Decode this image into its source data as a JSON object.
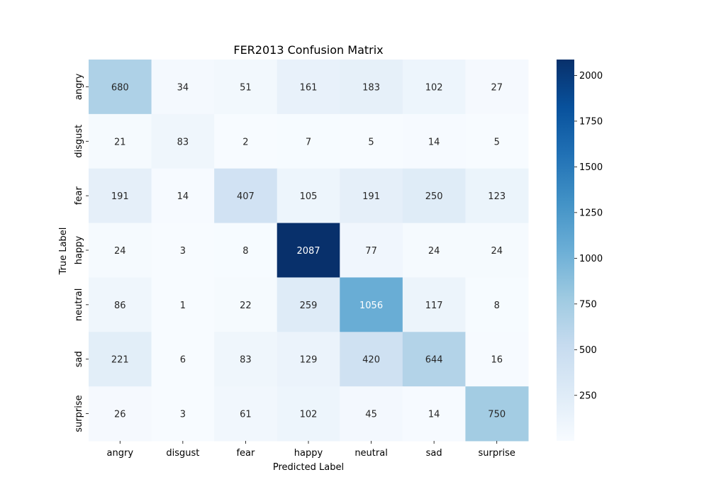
{
  "chart_data": {
    "type": "heatmap",
    "title": "FER2013 Confusion Matrix",
    "xlabel": "Predicted Label",
    "ylabel": "True Label",
    "x_categories": [
      "angry",
      "disgust",
      "fear",
      "happy",
      "neutral",
      "sad",
      "surprise"
    ],
    "y_categories": [
      "angry",
      "disgust",
      "fear",
      "happy",
      "neutral",
      "sad",
      "surprise"
    ],
    "values": [
      [
        680,
        34,
        51,
        161,
        183,
        102,
        27
      ],
      [
        21,
        83,
        2,
        7,
        5,
        14,
        5
      ],
      [
        191,
        14,
        407,
        105,
        191,
        250,
        123
      ],
      [
        24,
        3,
        8,
        2087,
        77,
        24,
        24
      ],
      [
        86,
        1,
        22,
        259,
        1056,
        117,
        8
      ],
      [
        221,
        6,
        83,
        129,
        420,
        644,
        16
      ],
      [
        26,
        3,
        61,
        102,
        45,
        14,
        750
      ]
    ],
    "colormap": "Blues",
    "color_low": "#f7fbff",
    "color_high": "#08306b",
    "vmin": 1,
    "vmax": 2087,
    "colorbar_ticks": [
      250,
      500,
      750,
      1000,
      1250,
      1500,
      1750,
      2000
    ],
    "annotation_dark_color": "#262626",
    "annotation_light_color": "#ffffff"
  }
}
